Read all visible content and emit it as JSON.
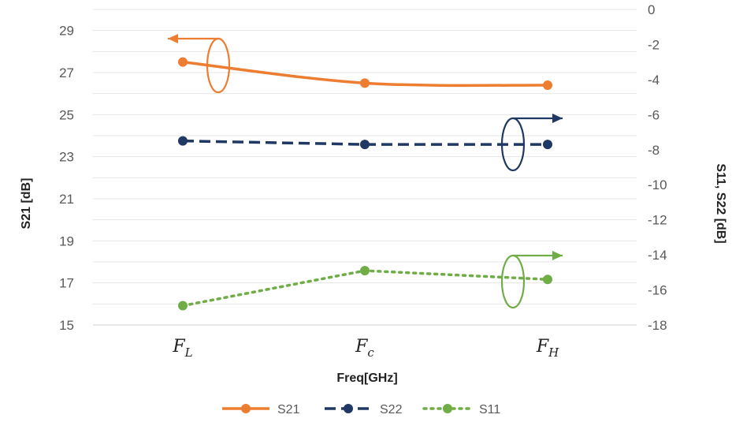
{
  "chart_data": {
    "type": "line",
    "categories": [
      "F_L",
      "F_c",
      "F_H"
    ],
    "category_labels": [
      {
        "main": "F",
        "sub": "L"
      },
      {
        "main": "F",
        "sub": "c"
      },
      {
        "main": "F",
        "sub": "H"
      }
    ],
    "xlabel": "Freq[GHz]",
    "ylabel_left": "S21 [dB]",
    "ylabel_right": "S11, S22 [dB]",
    "ylim_left": [
      15,
      30
    ],
    "yticks_left": [
      15,
      17,
      19,
      21,
      23,
      25,
      27,
      29
    ],
    "ylim_right": [
      -18,
      0
    ],
    "yticks_right": [
      0,
      -2,
      -4,
      -6,
      -8,
      -10,
      -12,
      -14,
      -16,
      -18
    ],
    "grid": true,
    "legend_position": "bottom",
    "series": [
      {
        "name": "S21",
        "axis": "left",
        "values": [
          27.5,
          26.5,
          26.4
        ],
        "color": "#ED7D31",
        "dash": "solid",
        "smooth": true
      },
      {
        "name": "S22",
        "axis": "right",
        "values": [
          -7.5,
          -7.7,
          -7.7
        ],
        "color": "#1F3864",
        "dash": "dashed",
        "smooth": false
      },
      {
        "name": "S11",
        "axis": "right",
        "values": [
          -16.9,
          -14.9,
          -15.4
        ],
        "color": "#70AD47",
        "dash": "dotted",
        "smooth": false
      }
    ],
    "annotations": [
      {
        "series": "S21",
        "points_to": "left axis",
        "color": "#ED7D31"
      },
      {
        "series": "S22",
        "points_to": "right axis",
        "color": "#1F3864"
      },
      {
        "series": "S11",
        "points_to": "right axis",
        "color": "#70AD47"
      }
    ]
  }
}
